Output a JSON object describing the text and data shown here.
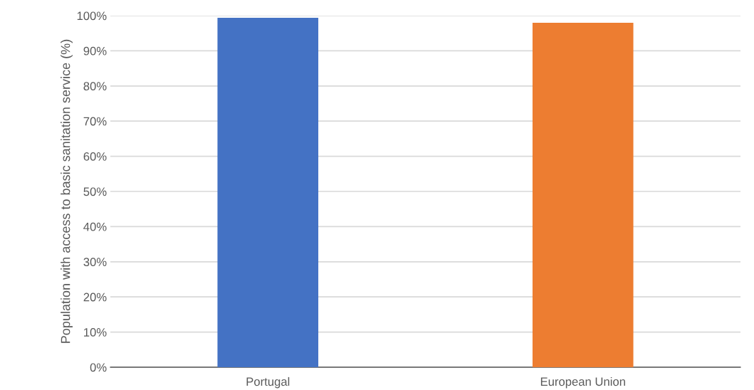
{
  "chart_data": {
    "type": "bar",
    "ylabel": "Population with access to basic sanitation service (%)",
    "categories": [
      "Portugal",
      "European Union"
    ],
    "values": [
      99.4,
      98.0
    ],
    "colors": [
      "#4472c4",
      "#ed7d31"
    ],
    "ylim": [
      0,
      100
    ],
    "yticks": [
      {
        "value": 0,
        "label": "0%"
      },
      {
        "value": 10,
        "label": "10%"
      },
      {
        "value": 20,
        "label": "20%"
      },
      {
        "value": 30,
        "label": "30%"
      },
      {
        "value": 40,
        "label": "40%"
      },
      {
        "value": 50,
        "label": "50%"
      },
      {
        "value": 60,
        "label": "60%"
      },
      {
        "value": 70,
        "label": "70%"
      },
      {
        "value": 80,
        "label": "80%"
      },
      {
        "value": 90,
        "label": "90%"
      },
      {
        "value": 100,
        "label": "100%"
      }
    ],
    "grid": "y"
  }
}
